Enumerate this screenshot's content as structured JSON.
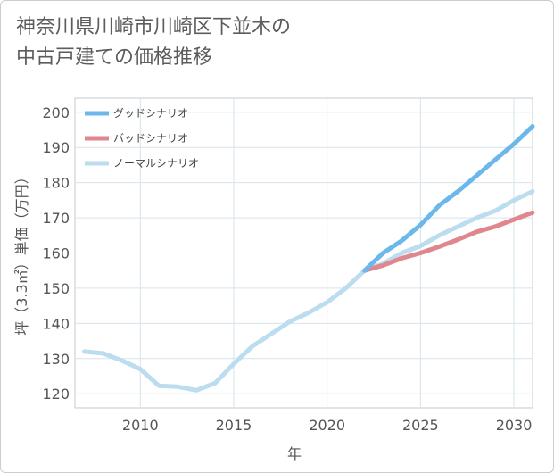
{
  "title_line1": "神奈川県川崎市川崎区下並木の",
  "title_line2": "中古戸建ての価格推移",
  "chart_data": {
    "type": "line",
    "xlabel": "年",
    "ylabel": "坪（3.3㎡）単価（万円）",
    "xlim": [
      2006.5,
      2031
    ],
    "ylim": [
      116,
      204
    ],
    "xticks": [
      2010,
      2015,
      2020,
      2025,
      2030
    ],
    "yticks": [
      120,
      130,
      140,
      150,
      160,
      170,
      180,
      190,
      200
    ],
    "grid": true,
    "legend_position": "top-left",
    "series": [
      {
        "name": "グッドシナリオ",
        "color": "#6cb8ea",
        "x": [
          2022,
          2023,
          2024,
          2025,
          2026,
          2027,
          2028,
          2029,
          2030,
          2031
        ],
        "y": [
          155,
          160,
          163.5,
          168,
          173.5,
          177.5,
          182,
          186.5,
          191,
          196
        ]
      },
      {
        "name": "バッドシナリオ",
        "color": "#e0868f",
        "x": [
          2022,
          2023,
          2024,
          2025,
          2026,
          2027,
          2028,
          2029,
          2030,
          2031
        ],
        "y": [
          155,
          156.5,
          158.5,
          160,
          161.8,
          163.8,
          166,
          167.5,
          169.5,
          171.5
        ]
      },
      {
        "name": "ノーマルシナリオ",
        "color": "#bcdcef",
        "x": [
          2007,
          2008,
          2009,
          2010,
          2011,
          2012,
          2013,
          2014,
          2015,
          2016,
          2017,
          2018,
          2019,
          2020,
          2021,
          2022,
          2023,
          2024,
          2025,
          2026,
          2027,
          2028,
          2029,
          2030,
          2031
        ],
        "y": [
          132,
          131.5,
          129.5,
          127,
          122.3,
          122,
          121,
          123,
          128.5,
          133.5,
          137,
          140.5,
          143,
          146,
          150,
          155,
          157,
          160,
          162,
          165,
          167.5,
          170,
          172,
          175,
          177.5
        ]
      }
    ]
  }
}
